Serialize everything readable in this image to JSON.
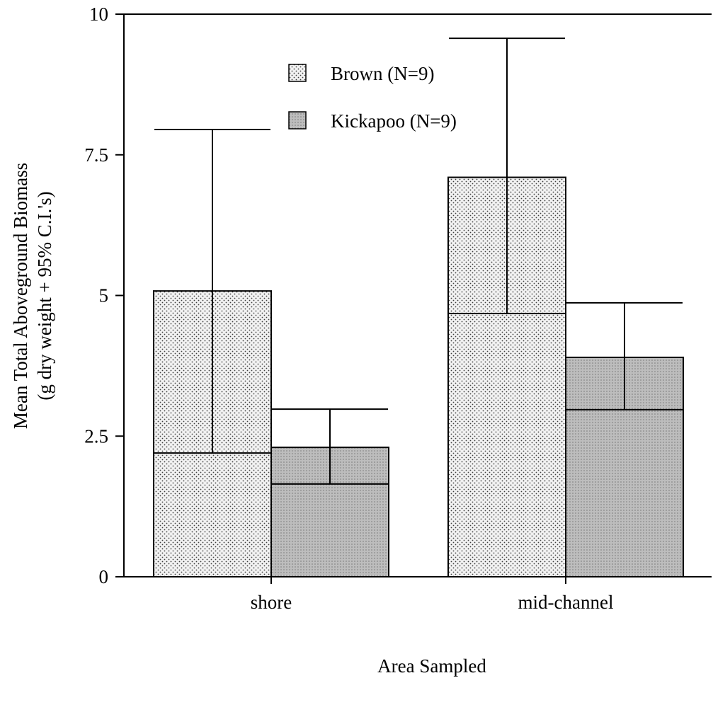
{
  "chart_data": {
    "type": "bar",
    "title": "",
    "xlabel": "Area Sampled",
    "ylabel_line1": "Mean Total Aboveground Biomass",
    "ylabel_line2": "(g dry weight + 95% C.I.'s)",
    "categories": [
      "shore",
      "mid-channel"
    ],
    "ylim": [
      0,
      10
    ],
    "yticks": [
      0,
      2.5,
      5,
      7.5,
      10
    ],
    "ytick_labels": [
      "0",
      "2.5",
      "5",
      "7.5",
      "10"
    ],
    "grid": false,
    "legend_position": "top-center",
    "series": [
      {
        "name": "Brown (N=9)",
        "pattern": "dotted",
        "values": [
          5.08,
          7.1
        ],
        "ci_lower": [
          2.2,
          4.68
        ],
        "ci_upper": [
          7.95,
          9.57
        ]
      },
      {
        "name": "Kickapoo (N=9)",
        "pattern": "shaded",
        "values": [
          2.3,
          3.9
        ],
        "ci_lower": [
          1.65,
          2.97
        ],
        "ci_upper": [
          2.98,
          4.87
        ]
      }
    ],
    "colors": {
      "axis": "#000000",
      "brown_fill": "#f2f2f2",
      "brown_dot": "#404040",
      "kickapoo_fill": "#bdbdbd",
      "kickapoo_dot": "#7a7a7a"
    }
  }
}
